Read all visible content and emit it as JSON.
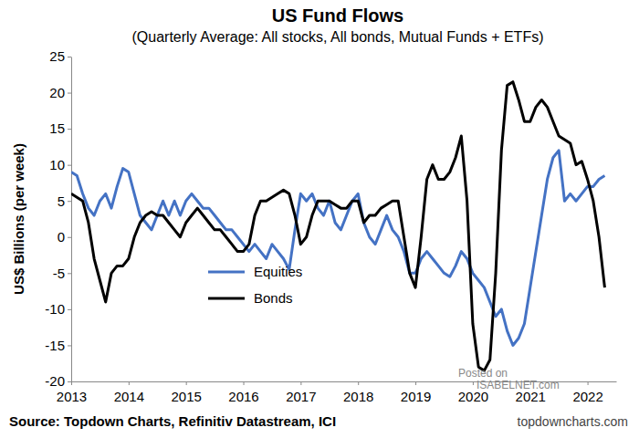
{
  "chart_data": {
    "type": "line",
    "title": "US Fund Flows",
    "subtitle": "(Quarterly Average: All stocks, All bonds, Mutual Funds + ETFs)",
    "y_label": "US$ Billions  (per week)",
    "annotations": [
      "Source: Topdown Charts, Refinitiv Datastream, ICI",
      "topdowncharts.com",
      "Posted on",
      "ISABELNET.com"
    ],
    "legend": "lower center",
    "grid": false,
    "xlim": [
      2013,
      2022.5
    ],
    "xticks": [
      2013,
      2014,
      2015,
      2016,
      2017,
      2018,
      2019,
      2020,
      2021,
      2022
    ],
    "ylim": [
      -20,
      25
    ],
    "yticks": [
      -20,
      -15,
      -10,
      -5,
      0,
      5,
      10,
      15,
      20,
      25
    ],
    "x": [
      2013,
      2013.1,
      2013.2,
      2013.3,
      2013.4,
      2013.5,
      2013.6,
      2013.7,
      2013.8,
      2013.9,
      2014,
      2014.1,
      2014.2,
      2014.3,
      2014.4,
      2014.5,
      2014.6,
      2014.7,
      2014.8,
      2014.9,
      2015,
      2015.1,
      2015.2,
      2015.3,
      2015.4,
      2015.5,
      2015.6,
      2015.7,
      2015.8,
      2015.9,
      2016,
      2016.1,
      2016.2,
      2016.3,
      2016.4,
      2016.5,
      2016.6,
      2016.7,
      2016.8,
      2016.9,
      2017,
      2017.1,
      2017.2,
      2017.3,
      2017.4,
      2017.5,
      2017.6,
      2017.7,
      2017.8,
      2017.9,
      2018,
      2018.1,
      2018.2,
      2018.3,
      2018.4,
      2018.5,
      2018.6,
      2018.7,
      2018.8,
      2018.9,
      2019,
      2019.1,
      2019.2,
      2019.3,
      2019.4,
      2019.5,
      2019.6,
      2019.7,
      2019.8,
      2019.9,
      2020,
      2020.1,
      2020.2,
      2020.3,
      2020.4,
      2020.5,
      2020.6,
      2020.7,
      2020.8,
      2020.9,
      2021,
      2021.1,
      2021.2,
      2021.3,
      2021.4,
      2021.5,
      2021.6,
      2021.7,
      2021.8,
      2021.9,
      2022,
      2022.1,
      2022.2,
      2022.3
    ],
    "series": [
      {
        "name": "Equities",
        "color": "#4472c4",
        "values": [
          9,
          8.5,
          6,
          4,
          3,
          5,
          6,
          4,
          7,
          9.5,
          9,
          6,
          3,
          2,
          1,
          3,
          5,
          3,
          5,
          3,
          5,
          6,
          5,
          4,
          4,
          3,
          2,
          1,
          1,
          0,
          -1,
          -2,
          -1,
          -2,
          -3,
          -1,
          -2,
          -3,
          -4.5,
          1,
          6,
          5,
          6,
          4,
          3,
          5,
          2,
          1,
          3,
          5,
          6,
          2,
          0,
          -1,
          1,
          3,
          1,
          0,
          -2,
          -5,
          -5,
          -3,
          -2,
          -3,
          -4,
          -5,
          -5.5,
          -4,
          -2,
          -3,
          -5,
          -6,
          -7,
          -9,
          -11,
          -10,
          -13,
          -15,
          -14,
          -12,
          -7,
          -2,
          3,
          8,
          11,
          12,
          5,
          6,
          5,
          6,
          7,
          7,
          8,
          8.5
        ]
      },
      {
        "name": "Bonds",
        "color": "#000000",
        "values": [
          6,
          5.5,
          5,
          2,
          -3,
          -6,
          -9,
          -5,
          -4,
          -4,
          -3,
          0,
          2,
          3,
          3.5,
          3,
          3,
          2,
          1,
          0,
          2,
          3,
          4,
          3,
          2,
          1,
          1,
          0,
          -1,
          -2,
          -2,
          -1,
          3,
          5,
          5,
          5.5,
          6,
          6.5,
          6,
          3,
          -1,
          0,
          3,
          5,
          5,
          5,
          4.5,
          4,
          4,
          5,
          5,
          2,
          3,
          3,
          4,
          4.5,
          5,
          5,
          0,
          -5,
          -7,
          0,
          8,
          10,
          8,
          8,
          9,
          11,
          14,
          5,
          -12,
          -18,
          -18.5,
          -17,
          -5,
          12,
          21,
          21.5,
          19,
          16,
          16,
          18,
          19,
          18,
          16,
          14,
          13.5,
          13,
          10,
          10.5,
          8,
          5,
          0,
          -7
        ]
      }
    ]
  }
}
